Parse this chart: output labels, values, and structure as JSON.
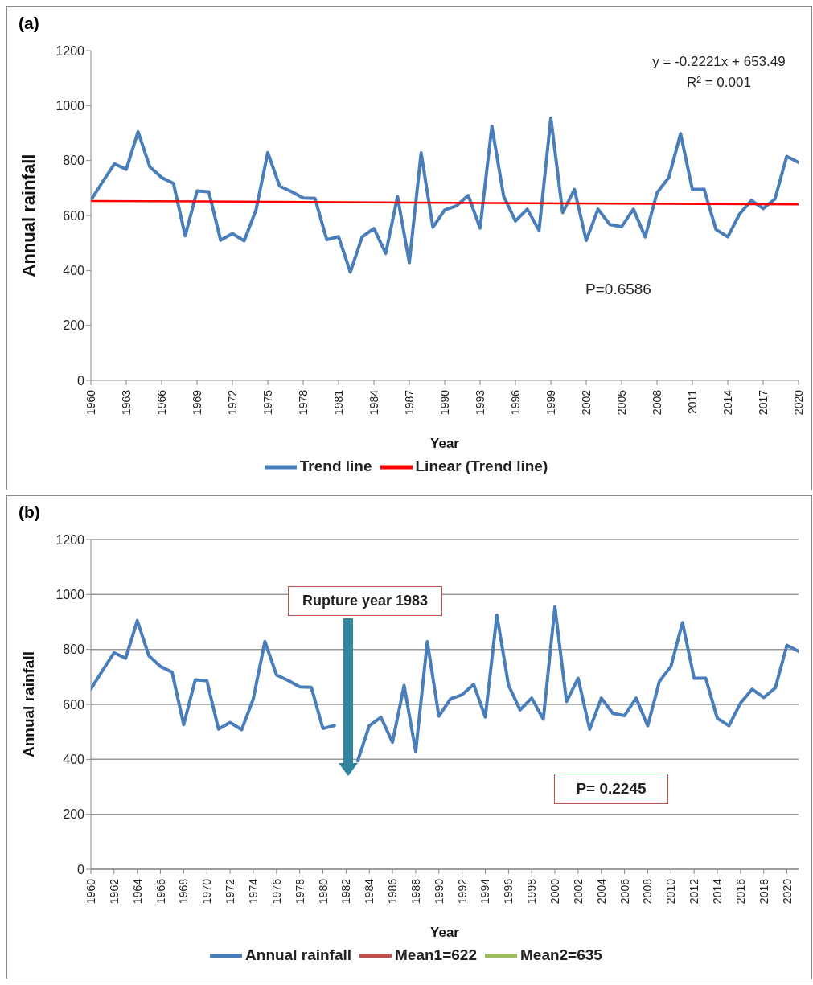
{
  "chart_data": [
    {
      "type": "line",
      "title": "(a)",
      "xlabel": "Year",
      "ylabel": "Annual rainfall",
      "xlim": [
        1960,
        2020
      ],
      "xticks": [
        1960,
        1963,
        1966,
        1969,
        1972,
        1975,
        1978,
        1981,
        1984,
        1987,
        1990,
        1993,
        1996,
        1999,
        2002,
        2005,
        2008,
        2011,
        2014,
        2017,
        2020
      ],
      "ylim": [
        0,
        1200
      ],
      "yticks": [
        0,
        200,
        400,
        600,
        800,
        1000,
        1200
      ],
      "grid": false,
      "legend": "bottom",
      "marker": "none",
      "line_style": "solid",
      "annotations": [
        "y = -0.2221x + 653.49",
        "R² = 0.001",
        "P=0.6586"
      ],
      "series": [
        {
          "name": "Trend line",
          "color": "#4a7ebb",
          "x": [
            1960,
            1961,
            1962,
            1963,
            1964,
            1965,
            1966,
            1967,
            1968,
            1969,
            1970,
            1971,
            1972,
            1973,
            1974,
            1975,
            1976,
            1977,
            1978,
            1979,
            1980,
            1981,
            1982,
            1983,
            1984,
            1985,
            1986,
            1987,
            1988,
            1989,
            1990,
            1991,
            1992,
            1993,
            1994,
            1995,
            1996,
            1997,
            1998,
            1999,
            2000,
            2001,
            2002,
            2003,
            2004,
            2005,
            2006,
            2007,
            2008,
            2009,
            2010,
            2011,
            2012,
            2013,
            2014,
            2015,
            2016,
            2017,
            2018,
            2019,
            2020
          ],
          "values": [
            656,
            723,
            788,
            768,
            905,
            777,
            738,
            717,
            526,
            689,
            686,
            510,
            534,
            508,
            620,
            829,
            707,
            687,
            664,
            662,
            512,
            523,
            394,
            522,
            553,
            462,
            669,
            428,
            828,
            557,
            620,
            635,
            673,
            554,
            925,
            670,
            580,
            623,
            546,
            955,
            610,
            695,
            509,
            623,
            567,
            559,
            623,
            522,
            683,
            738,
            898,
            695,
            695,
            549,
            522,
            605,
            655,
            625,
            660,
            815,
            793
          ]
        },
        {
          "name": "Linear (Trend line)",
          "type": "line",
          "color": "#ff0000",
          "x": [
            1960,
            2020
          ],
          "values": [
            653,
            640
          ]
        }
      ]
    },
    {
      "type": "line",
      "title": "(b)",
      "xlabel": "Year",
      "ylabel": "Annual rainfall",
      "xlim": [
        1960,
        2021
      ],
      "xticks": [
        1960,
        1962,
        1964,
        1966,
        1968,
        1970,
        1972,
        1974,
        1976,
        1978,
        1980,
        1982,
        1984,
        1986,
        1988,
        1990,
        1992,
        1994,
        1996,
        1998,
        2000,
        2002,
        2004,
        2006,
        2008,
        2010,
        2012,
        2014,
        2016,
        2018,
        2020
      ],
      "ylim": [
        0,
        1200
      ],
      "yticks": [
        0,
        200,
        400,
        600,
        800,
        1000,
        1200
      ],
      "grid": "y",
      "legend": "bottom",
      "marker": "none",
      "line_style": "solid",
      "annotations": [
        "Rupture year 1983",
        "P= 0.2245"
      ],
      "series": [
        {
          "name": "Annual rainfall",
          "color": "#4a7ebb",
          "x": [
            1960,
            1961,
            1962,
            1963,
            1964,
            1965,
            1966,
            1967,
            1968,
            1969,
            1970,
            1971,
            1972,
            1973,
            1974,
            1975,
            1976,
            1977,
            1978,
            1979,
            1980,
            1981,
            1982,
            1983,
            1984,
            1985,
            1986,
            1987,
            1988,
            1989,
            1990,
            1991,
            1992,
            1993,
            1994,
            1995,
            1996,
            1997,
            1998,
            1999,
            2000,
            2001,
            2002,
            2003,
            2004,
            2005,
            2006,
            2007,
            2008,
            2009,
            2010,
            2011,
            2012,
            2013,
            2014,
            2015,
            2016,
            2017,
            2018,
            2019,
            2020,
            2021
          ],
          "values": [
            656,
            723,
            788,
            768,
            905,
            777,
            738,
            717,
            526,
            689,
            686,
            510,
            534,
            508,
            620,
            829,
            707,
            687,
            664,
            662,
            512,
            523,
            null,
            394,
            522,
            553,
            462,
            669,
            428,
            828,
            557,
            620,
            635,
            673,
            554,
            925,
            670,
            580,
            623,
            546,
            955,
            610,
            695,
            509,
            623,
            567,
            559,
            623,
            522,
            683,
            738,
            898,
            695,
            695,
            549,
            522,
            605,
            655,
            625,
            660,
            815,
            793
          ]
        },
        {
          "name": "Mean1=622",
          "color": "#c0504d"
        },
        {
          "name": "Mean2=635",
          "color": "#9bbb59"
        }
      ]
    }
  ]
}
